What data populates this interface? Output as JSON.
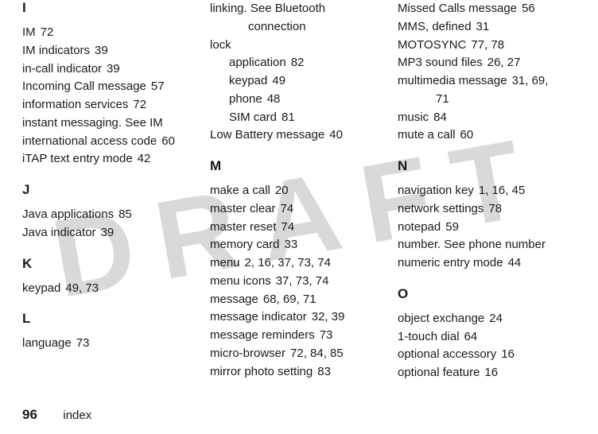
{
  "watermark": "DRAFT",
  "footer": {
    "page": "96",
    "label": "index"
  },
  "columns": [
    {
      "sections": [
        {
          "letter": "I",
          "first": true,
          "entries": [
            {
              "text": "IM",
              "pages": "72"
            },
            {
              "text": "IM indicators",
              "pages": "39"
            },
            {
              "text": "in-call indicator",
              "pages": "39"
            },
            {
              "text": "Incoming Call message",
              "pages": "57"
            },
            {
              "text": "information services",
              "pages": "72"
            },
            {
              "text": "instant messaging. See IM",
              "pages": ""
            },
            {
              "text": "international access code",
              "pages": "60"
            },
            {
              "text": "iTAP text entry mode",
              "pages": "42"
            }
          ]
        },
        {
          "letter": "J",
          "entries": [
            {
              "text": "Java applications",
              "pages": "85"
            },
            {
              "text": "Java indicator",
              "pages": "39"
            }
          ]
        },
        {
          "letter": "K",
          "entries": [
            {
              "text": "keypad",
              "pages": "49, 73"
            }
          ]
        },
        {
          "letter": "L",
          "entries": [
            {
              "text": "language",
              "pages": "73"
            }
          ]
        }
      ]
    },
    {
      "sections": [
        {
          "letter": "",
          "first": true,
          "entries": [
            {
              "text": "linking. See Bluetooth",
              "pages": ""
            },
            {
              "text": "connection",
              "pages": "",
              "wrap": true
            },
            {
              "text": "lock",
              "pages": ""
            },
            {
              "text": "application",
              "pages": "82",
              "sub": true
            },
            {
              "text": "keypad",
              "pages": "49",
              "sub": true
            },
            {
              "text": "phone",
              "pages": "48",
              "sub": true
            },
            {
              "text": "SIM card",
              "pages": "81",
              "sub": true
            },
            {
              "text": "Low Battery message",
              "pages": "40"
            }
          ]
        },
        {
          "letter": "M",
          "entries": [
            {
              "text": "make a call",
              "pages": "20"
            },
            {
              "text": "master clear",
              "pages": "74"
            },
            {
              "text": "master reset",
              "pages": "74"
            },
            {
              "text": "memory card",
              "pages": "33"
            },
            {
              "text": "menu",
              "pages": "2, 16, 37, 73, 74"
            },
            {
              "text": "menu icons",
              "pages": "37, 73, 74"
            },
            {
              "text": "message",
              "pages": "68, 69, 71"
            },
            {
              "text": "message indicator",
              "pages": "32, 39"
            },
            {
              "text": "message reminders",
              "pages": "73"
            },
            {
              "text": "micro-browser",
              "pages": "72, 84, 85"
            },
            {
              "text": "mirror photo setting",
              "pages": "83"
            }
          ]
        }
      ]
    },
    {
      "sections": [
        {
          "letter": "",
          "first": true,
          "entries": [
            {
              "text": "Missed Calls message",
              "pages": "56"
            },
            {
              "text": "MMS, defined",
              "pages": "31"
            },
            {
              "text": "MOTOSYNC",
              "pages": "77, 78"
            },
            {
              "text": "MP3 sound files",
              "pages": "26, 27"
            },
            {
              "text": "multimedia message",
              "pages": "31, 69,"
            },
            {
              "text": "71",
              "pages": "",
              "wrap": true
            },
            {
              "text": "music",
              "pages": "84"
            },
            {
              "text": "mute a call",
              "pages": "60"
            }
          ]
        },
        {
          "letter": "N",
          "entries": [
            {
              "text": "navigation key",
              "pages": "1, 16, 45"
            },
            {
              "text": "network settings",
              "pages": "78"
            },
            {
              "text": "notepad",
              "pages": "59"
            },
            {
              "text": "number. See phone number",
              "pages": ""
            },
            {
              "text": "numeric entry mode",
              "pages": "44"
            }
          ]
        },
        {
          "letter": "O",
          "entries": [
            {
              "text": "object exchange",
              "pages": "24"
            },
            {
              "text": "1-touch dial",
              "pages": "64"
            },
            {
              "text": "optional accessory",
              "pages": "16"
            },
            {
              "text": "optional feature",
              "pages": "16"
            }
          ]
        }
      ]
    }
  ]
}
